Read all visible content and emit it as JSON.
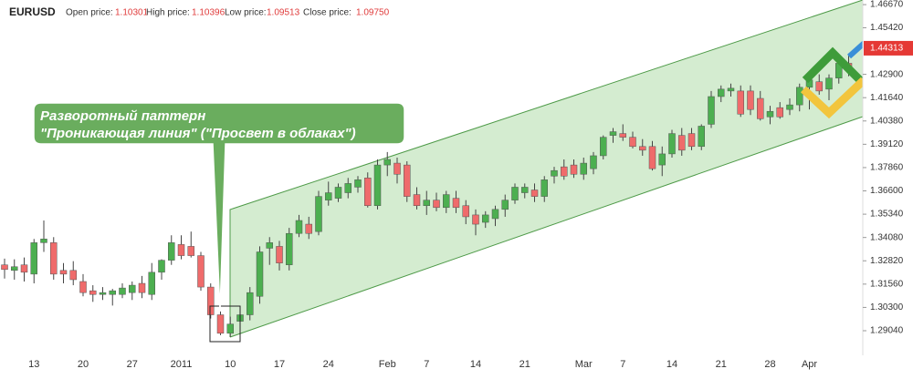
{
  "header": {
    "symbol": "EURUSD",
    "fields": [
      {
        "label": "Open price:",
        "value": "1.10301"
      },
      {
        "label": "High price:",
        "value": "1.10396"
      },
      {
        "label": "Low price:",
        "value": "1.09513"
      },
      {
        "label": "Close price:",
        "value": "1.09750"
      }
    ]
  },
  "chart_data": {
    "type": "candlestick",
    "up_color": "#4caf50",
    "down_color": "#ef6b6b",
    "annotation": [
      "Разворотный паттерн",
      "\"Проникающая линия\" (\"Просвет в облаках\")"
    ],
    "last_price": 1.44313,
    "categories": [
      null,
      null,
      null,
      "13",
      null,
      null,
      null,
      null,
      "20",
      null,
      null,
      null,
      null,
      "27",
      null,
      null,
      null,
      null,
      "2011",
      null,
      null,
      null,
      null,
      "10",
      null,
      null,
      null,
      null,
      "17",
      null,
      null,
      null,
      null,
      "24",
      null,
      null,
      null,
      null,
      null,
      "Feb",
      null,
      null,
      null,
      "7",
      null,
      null,
      null,
      null,
      "14",
      null,
      null,
      null,
      null,
      "21",
      null,
      null,
      null,
      null,
      null,
      "Mar",
      null,
      null,
      null,
      "7",
      null,
      null,
      null,
      null,
      "14",
      null,
      null,
      null,
      null,
      "21",
      null,
      null,
      null,
      null,
      "28",
      null,
      null,
      null,
      "Apr",
      null,
      null,
      null,
      null
    ],
    "open": [
      1.326,
      1.323,
      1.326,
      1.321,
      1.338,
      1.338,
      1.323,
      1.323,
      1.317,
      1.312,
      1.31,
      1.31,
      1.31,
      1.311,
      1.316,
      1.31,
      1.322,
      1.3285,
      1.337,
      1.336,
      1.331,
      1.314,
      1.299,
      1.289,
      1.2955,
      1.299,
      1.309,
      1.335,
      1.336,
      1.326,
      1.343,
      1.348,
      1.344,
      1.361,
      1.362,
      1.365,
      1.368,
      1.373,
      1.358,
      1.38,
      1.381,
      1.38,
      1.364,
      1.358,
      1.361,
      1.357,
      1.362,
      1.358,
      1.353,
      1.349,
      1.351,
      1.356,
      1.361,
      1.365,
      1.3665,
      1.363,
      1.374,
      1.379,
      1.38,
      1.375,
      1.378,
      1.385,
      1.396,
      1.397,
      1.395,
      1.39,
      1.39,
      1.38,
      1.386,
      1.396,
      1.397,
      1.39,
      1.402,
      1.417,
      1.42,
      1.42,
      1.42,
      1.416,
      1.406,
      1.411,
      1.41,
      1.4125,
      1.422,
      1.425,
      1.421,
      1.427,
      1.435
    ],
    "high": [
      1.3294,
      1.329,
      1.33,
      1.34,
      1.35,
      1.341,
      1.327,
      1.328,
      1.321,
      1.315,
      1.314,
      1.313,
      1.316,
      1.317,
      1.32,
      1.327,
      1.329,
      1.342,
      1.342,
      1.344,
      1.333,
      1.316,
      1.301,
      1.298,
      1.3,
      1.314,
      1.336,
      1.341,
      1.339,
      1.346,
      1.353,
      1.352,
      1.366,
      1.371,
      1.37,
      1.373,
      1.374,
      1.376,
      1.383,
      1.387,
      1.384,
      1.382,
      1.368,
      1.366,
      1.365,
      1.366,
      1.366,
      1.361,
      1.356,
      1.355,
      1.358,
      1.364,
      1.37,
      1.37,
      1.37,
      1.374,
      1.379,
      1.383,
      1.383,
      1.384,
      1.387,
      1.396,
      1.4,
      1.402,
      1.398,
      1.394,
      1.393,
      1.39,
      1.399,
      1.4,
      1.4,
      1.402,
      1.42,
      1.423,
      1.424,
      1.423,
      1.423,
      1.42,
      1.412,
      1.414,
      1.416,
      1.424,
      1.428,
      1.429,
      1.429,
      1.436,
      1.439
    ],
    "low": [
      1.3186,
      1.318,
      1.317,
      1.316,
      1.333,
      1.318,
      1.316,
      1.315,
      1.309,
      1.306,
      1.307,
      1.304,
      1.308,
      1.307,
      1.308,
      1.307,
      1.318,
      1.326,
      1.329,
      1.33,
      1.312,
      1.297,
      1.288,
      1.287,
      1.292,
      1.296,
      1.305,
      1.326,
      1.323,
      1.323,
      1.341,
      1.34,
      1.342,
      1.358,
      1.36,
      1.362,
      1.365,
      1.357,
      1.356,
      1.374,
      1.37,
      1.36,
      1.356,
      1.353,
      1.355,
      1.354,
      1.354,
      1.348,
      1.342,
      1.346,
      1.347,
      1.352,
      1.359,
      1.362,
      1.36,
      1.36,
      1.37,
      1.372,
      1.373,
      1.372,
      1.375,
      1.383,
      1.392,
      1.393,
      1.389,
      1.385,
      1.377,
      1.374,
      1.384,
      1.385,
      1.388,
      1.388,
      1.4,
      1.414,
      1.417,
      1.406,
      1.407,
      1.404,
      1.402,
      1.405,
      1.407,
      1.409,
      1.41,
      1.418,
      1.415,
      1.424,
      1.428
    ],
    "close": [
      1.3235,
      1.325,
      1.322,
      1.338,
      1.34,
      1.321,
      1.321,
      1.318,
      1.311,
      1.31,
      1.311,
      1.312,
      1.3135,
      1.315,
      1.311,
      1.322,
      1.3285,
      1.338,
      1.331,
      1.331,
      1.314,
      1.299,
      1.289,
      1.294,
      1.299,
      1.311,
      1.333,
      1.338,
      1.327,
      1.343,
      1.35,
      1.343,
      1.363,
      1.365,
      1.368,
      1.37,
      1.372,
      1.358,
      1.38,
      1.383,
      1.375,
      1.363,
      1.358,
      1.361,
      1.357,
      1.364,
      1.357,
      1.352,
      1.348,
      1.353,
      1.356,
      1.361,
      1.368,
      1.368,
      1.363,
      1.372,
      1.377,
      1.374,
      1.375,
      1.381,
      1.385,
      1.395,
      1.398,
      1.395,
      1.39,
      1.388,
      1.378,
      1.386,
      1.397,
      1.388,
      1.39,
      1.401,
      1.417,
      1.421,
      1.4215,
      1.4075,
      1.41,
      1.405,
      1.409,
      1.406,
      1.4125,
      1.422,
      1.426,
      1.42,
      1.427,
      1.435,
      1.431
    ],
    "ylim": [
      1.2771,
      1.4692
    ],
    "yticks": [
      {
        "value": 1.2904,
        "label": "1.29040"
      },
      {
        "value": 1.303,
        "label": "1.30300"
      },
      {
        "value": 1.3156,
        "label": "1.31560"
      },
      {
        "value": 1.3282,
        "label": "1.32820"
      },
      {
        "value": 1.3408,
        "label": "1.34080"
      },
      {
        "value": 1.3534,
        "label": "1.35340"
      },
      {
        "value": 1.366,
        "label": "1.36600"
      },
      {
        "value": 1.3786,
        "label": "1.37860"
      },
      {
        "value": 1.3912,
        "label": "1.39120"
      },
      {
        "value": 1.4038,
        "label": "1.40380"
      },
      {
        "value": 1.4164,
        "label": "1.41640"
      },
      {
        "value": 1.429,
        "label": "1.42900"
      },
      {
        "value": 1.4542,
        "label": "1.45420"
      },
      {
        "value": 1.4667,
        "label": "1.46670"
      }
    ]
  }
}
